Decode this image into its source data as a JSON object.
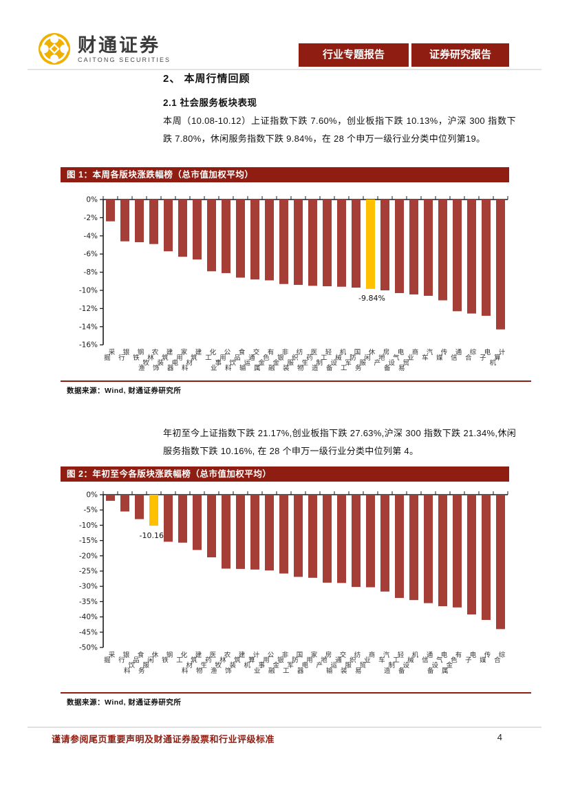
{
  "header": {
    "logo_cn": "财通证券",
    "logo_en": "CAITONG SECURITIES",
    "badges": [
      "行业专题报告",
      "证券研究报告"
    ]
  },
  "section": {
    "heading": "2、 本周行情回顾",
    "subheading": "2.1 社会服务板块表现"
  },
  "paragraphs": {
    "p1": "本周（10.08-10.12）上证指数下跌 7.60%，创业板指下跌 10.13%，沪深 300 指数下跌 7.80%，休闲服务指数下跌 9.84%，在 28 个申万一级行业分类中位列第19。",
    "p2": "年初至今上证指数下跌 21.17%,创业板指下跌 27.63%,沪深 300 指数下跌 21.34%,休闲服务指数下跌 10.16%, 在 28 个申万一级行业分类中位列第 4。"
  },
  "figures": [
    {
      "title": "图 1：本周各版块涨跌幅榜（总市值加权平均）",
      "source": "数据来源：Wind, 财通证券研究所"
    },
    {
      "title": "图 2：年初至今各版块涨跌幅榜（总市值加权平均）",
      "source": "数据来源：Wind, 财通证券研究所"
    }
  ],
  "footer": {
    "disclaimer": "谨请参阅尾页重要声明及财通证券股票和行业评级标准",
    "page_number": "4"
  },
  "colors": {
    "accent_red": "#8F1D12",
    "bar_red": "#A43E37",
    "bar_highlight_yellow": "#FFC000",
    "logo_gold": "#F0B000",
    "axis_black": "#1a1a1a"
  },
  "chart_data": [
    {
      "type": "bar",
      "title": "图 1：本周各版块涨跌幅榜（总市值加权平均）",
      "categories": [
        "采掘",
        "银行",
        "钢铁",
        "农林牧渔",
        "建筑装饰",
        "家用电器",
        "建筑材料",
        "化工",
        "公用事业",
        "食品饮料",
        "交通运输",
        "有色金属",
        "非银金融",
        "纺织服装",
        "医药生物",
        "轻工制造",
        "机械设备",
        "国防军工",
        "休闲服务",
        "房地产",
        "电气设备",
        "商业贸易",
        "汽车",
        "传媒",
        "通信",
        "综合",
        "电子",
        "计算机"
      ],
      "values": [
        -2.4,
        -4.6,
        -4.7,
        -4.9,
        -5.7,
        -6.3,
        -6.6,
        -7.9,
        -8.1,
        -8.6,
        -8.8,
        -8.9,
        -9.3,
        -9.4,
        -9.5,
        -9.55,
        -9.6,
        -9.7,
        -9.84,
        -10.0,
        -10.3,
        -10.45,
        -10.6,
        -11.1,
        -12.3,
        -12.55,
        -12.8,
        -14.3
      ],
      "highlight_index": 18,
      "highlight_label": "-9.84%",
      "xlabel": "",
      "ylabel": "",
      "ylim": [
        -16,
        0
      ],
      "ytick_step": 2,
      "grid": false,
      "legend": "none"
    },
    {
      "type": "bar",
      "title": "图 2：年初至今各版块涨跌幅榜（总市值加权平均）",
      "categories": [
        "采掘",
        "银行",
        "食品饮料",
        "休闲服务",
        "钢铁",
        "化工",
        "建筑材料",
        "医药生物",
        "农林牧渔",
        "建筑装饰",
        "计算机",
        "公用事业",
        "非银金融",
        "国防军工",
        "家用电器",
        "房地产",
        "交通运输",
        "纺织服装",
        "商业贸易",
        "汽车",
        "轻工制造",
        "机械设备",
        "通信",
        "电气设备",
        "有色金属",
        "电子",
        "传媒",
        "综合"
      ],
      "values": [
        -2.0,
        -5.5,
        -8.0,
        -10.16,
        -15.4,
        -15.7,
        -18.1,
        -20.5,
        -24.2,
        -24.3,
        -24.5,
        -24.8,
        -25.8,
        -26.9,
        -27.2,
        -28.8,
        -28.9,
        -30.2,
        -30.3,
        -31.7,
        -33.8,
        -34.5,
        -35.5,
        -36.5,
        -36.9,
        -39.2,
        -41.0,
        -44.0
      ],
      "highlight_index": 3,
      "highlight_label": "-10.16%",
      "xlabel": "",
      "ylabel": "",
      "ylim": [
        -50,
        0
      ],
      "ytick_step": 5,
      "grid": false,
      "legend": "none"
    }
  ]
}
